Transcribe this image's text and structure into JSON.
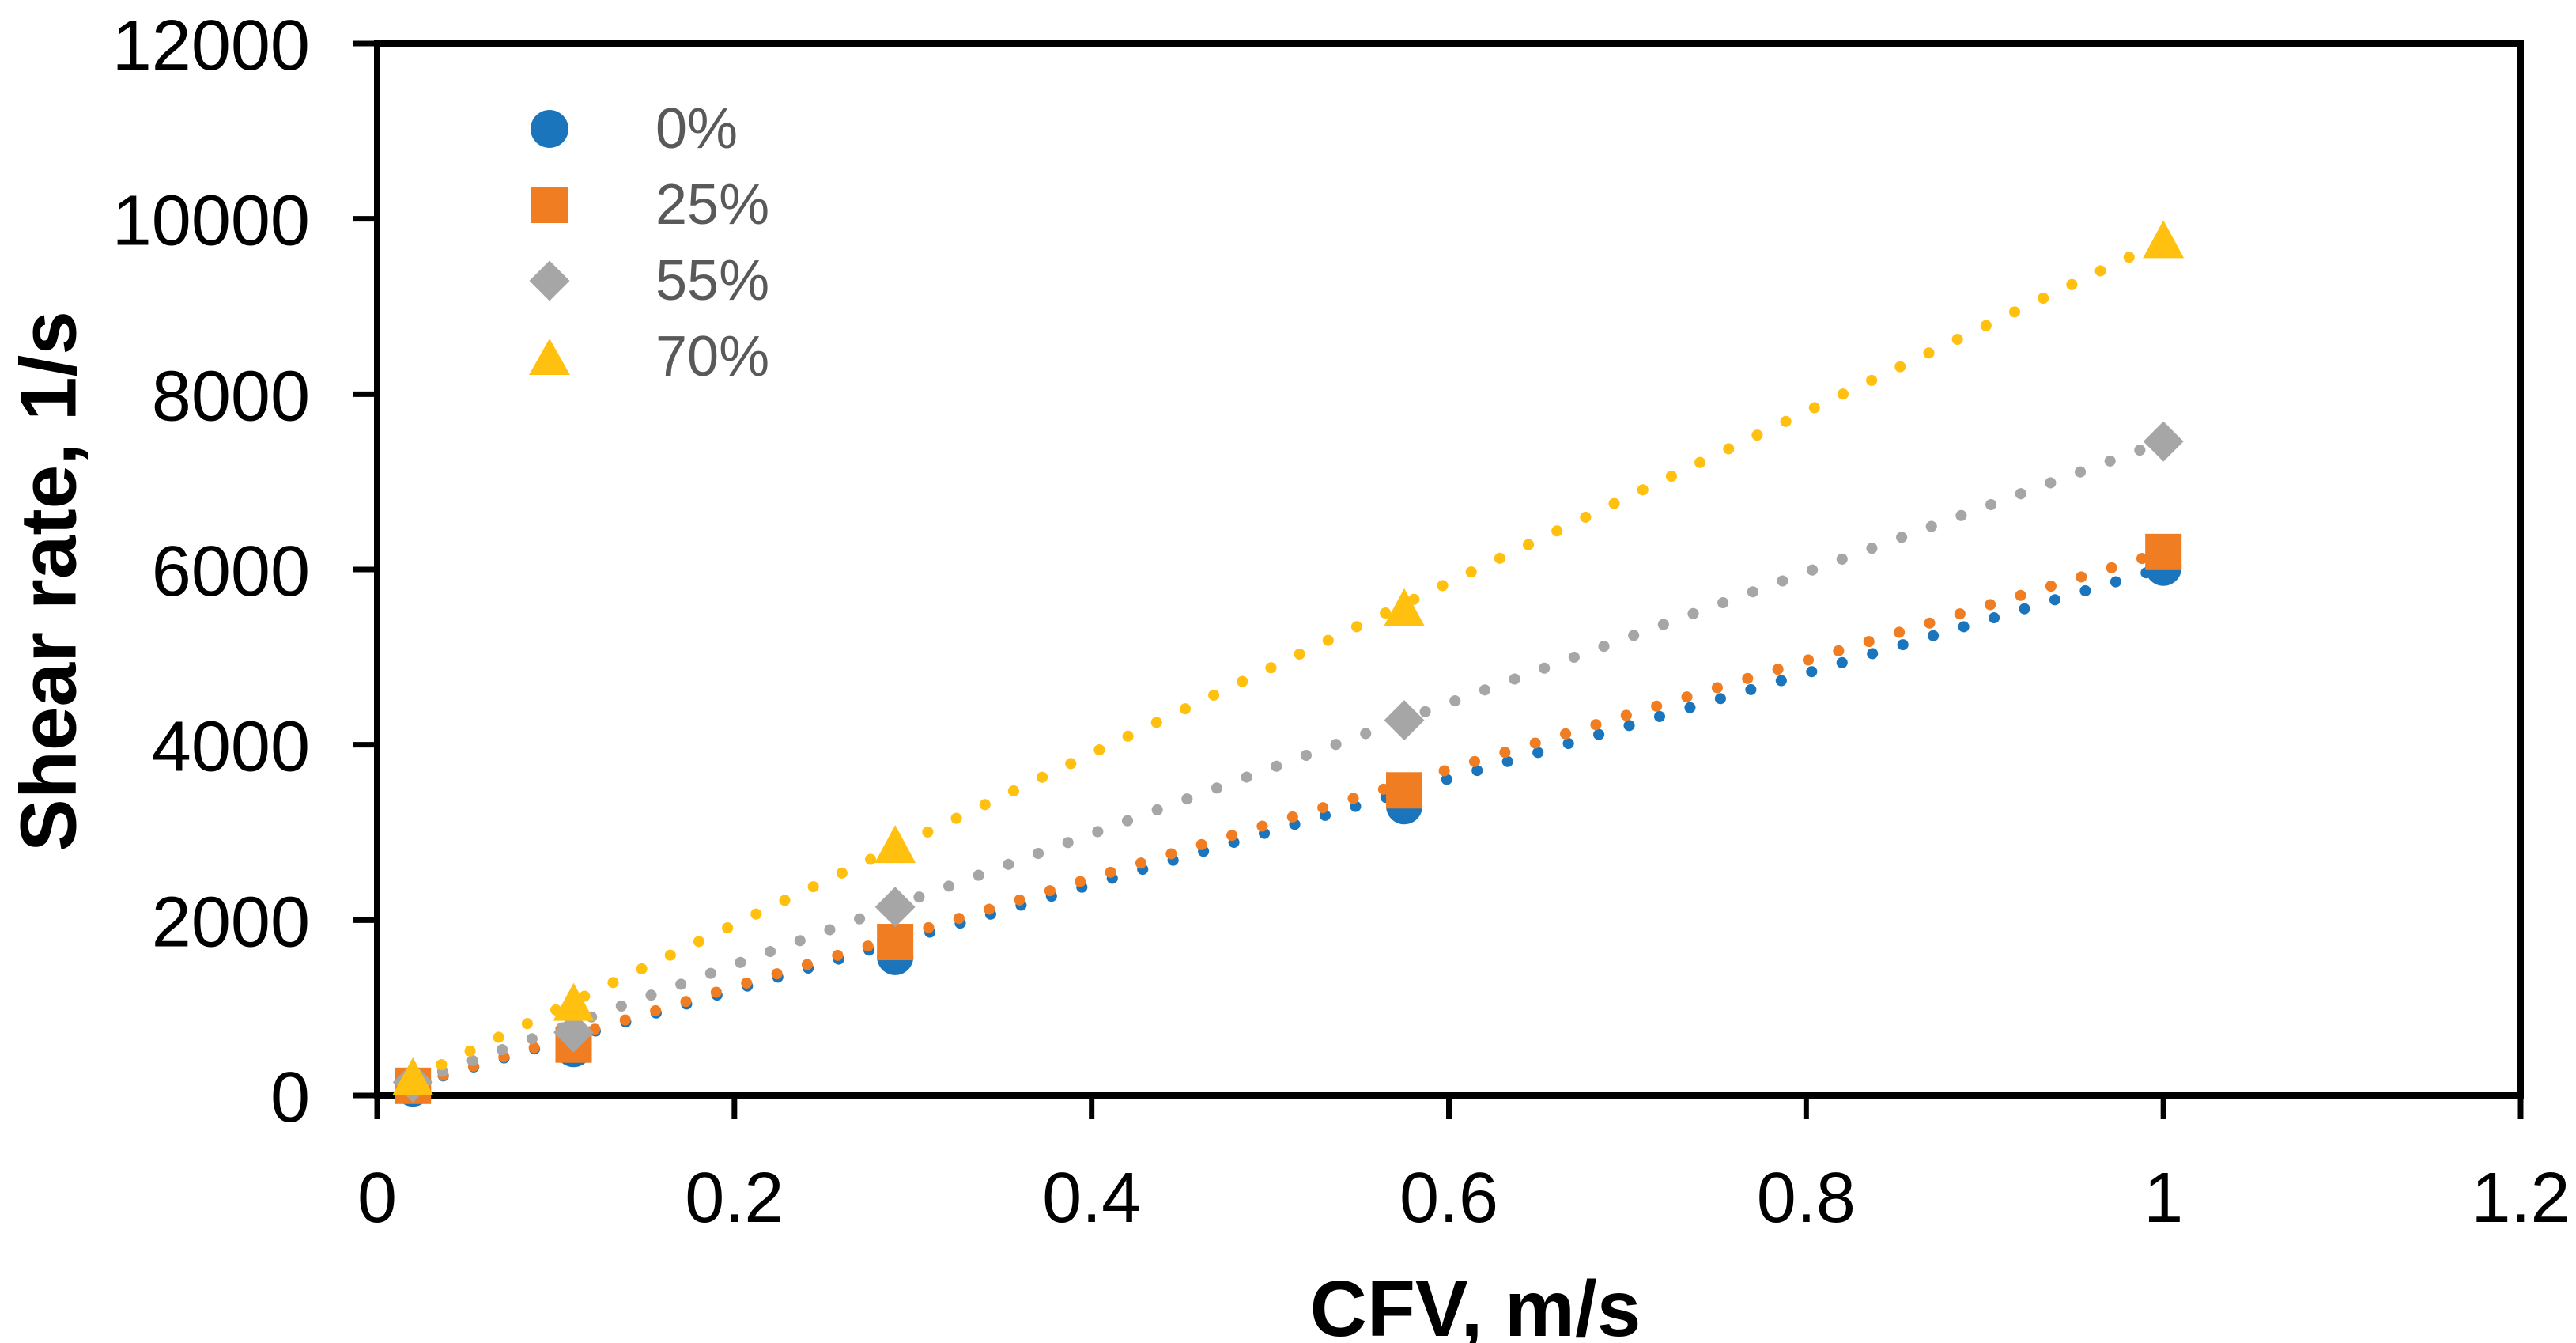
{
  "chart_data": {
    "type": "scatter",
    "title": "",
    "xlabel": "CFV, m/s",
    "ylabel": "Shear rate, 1/s",
    "background": "#FFFFFF",
    "axis_color": "#000000",
    "grid": false,
    "x_axis": {
      "min": 0,
      "max": 1.2,
      "tick_values": [
        0,
        0.2,
        0.4,
        0.6,
        0.8,
        1,
        1.2
      ],
      "tick_labels": [
        "0",
        "0.2",
        "0.4",
        "0.6",
        "0.8",
        "1",
        "1.2"
      ]
    },
    "y_axis": {
      "min": 0,
      "max": 12000,
      "tick_values": [
        0,
        2000,
        4000,
        6000,
        8000,
        10000,
        12000
      ],
      "tick_labels": [
        "0",
        "2000",
        "4000",
        "6000",
        "8000",
        "10000",
        "12000"
      ]
    },
    "x": [
      0.02,
      0.11,
      0.29,
      0.575,
      1.0
    ],
    "series": [
      {
        "name": "0%",
        "marker": "circle",
        "color": "#1B75BC",
        "values": [
          80,
          530,
          1580,
          3300,
          6020
        ],
        "trendline": {
          "type": "linear",
          "style": "dotted"
        }
      },
      {
        "name": "25%",
        "marker": "square",
        "color": "#F07D22",
        "values": [
          110,
          580,
          1750,
          3480,
          6200
        ],
        "trendline": {
          "type": "linear",
          "style": "dotted"
        }
      },
      {
        "name": "55%",
        "marker": "diamond",
        "color": "#A6A6A6",
        "values": [
          150,
          720,
          2150,
          4280,
          7460
        ],
        "trendline": {
          "type": "linear",
          "style": "dotted"
        }
      },
      {
        "name": "70%",
        "marker": "triangle",
        "color": "#FFC010",
        "values": [
          200,
          1050,
          2850,
          5550,
          9750
        ],
        "trendline": {
          "type": "linear",
          "style": "dotted"
        }
      }
    ],
    "legend": {
      "position": "top-left-inside",
      "text_color": "#595959",
      "entries": [
        "0%",
        "25%",
        "55%",
        "70%"
      ]
    }
  }
}
